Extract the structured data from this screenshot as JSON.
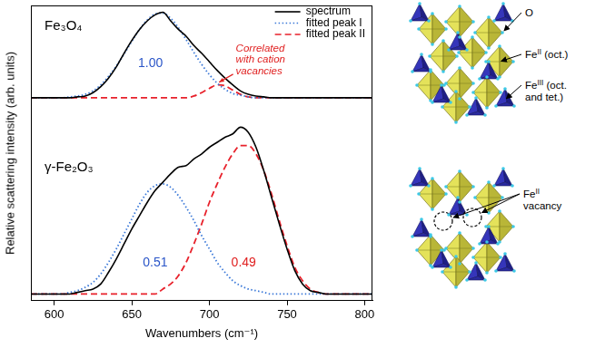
{
  "chart_data": [
    {
      "type": "line",
      "annotations": [
        {
          "text": "Fe₃O₄",
          "color": "#000000"
        },
        {
          "text": "1.00",
          "color": "#2a55c8"
        },
        {
          "text": "Correlated with cation vacancies",
          "color": "#e02020"
        }
      ],
      "x": [
        585,
        590,
        595,
        600,
        605,
        610,
        615,
        620,
        625,
        630,
        635,
        640,
        645,
        650,
        655,
        660,
        665,
        670,
        675,
        680,
        685,
        690,
        695,
        700,
        705,
        710,
        715,
        720,
        725,
        730,
        735,
        740,
        745,
        750,
        755,
        760,
        765,
        770,
        775,
        780,
        785,
        790,
        795,
        800,
        805
      ],
      "xlim": [
        585,
        805
      ],
      "ylim": [
        -0.15,
        1.08
      ],
      "series": [
        {
          "name": "spectrum",
          "color": "#000000",
          "line_style": "solid",
          "values": [
            0,
            0,
            0,
            0,
            0,
            0,
            0.01,
            0.02,
            0.06,
            0.13,
            0.23,
            0.36,
            0.52,
            0.67,
            0.8,
            0.9,
            0.97,
            1.0,
            0.9,
            0.8,
            0.72,
            0.61,
            0.52,
            0.42,
            0.32,
            0.23,
            0.15,
            0.08,
            0.04,
            0.02,
            0.01,
            0,
            0,
            0,
            0,
            0,
            0,
            0,
            0,
            0,
            0,
            0,
            0,
            0,
            0
          ]
        },
        {
          "name": "fitted peak I",
          "color": "#3a78d8",
          "line_style": "dotted",
          "values": [
            0,
            0,
            0,
            0,
            0,
            0.01,
            0.02,
            0.04,
            0.08,
            0.15,
            0.25,
            0.37,
            0.51,
            0.66,
            0.8,
            0.91,
            0.98,
            0.99,
            0.93,
            0.82,
            0.68,
            0.53,
            0.39,
            0.27,
            0.17,
            0.1,
            0.05,
            0.03,
            0.01,
            0,
            0,
            0,
            0,
            0,
            0,
            0,
            0,
            0,
            0,
            0,
            0,
            0,
            0,
            0,
            0
          ]
        },
        {
          "name": "fitted peak II",
          "color": "#e8212b",
          "line_style": "dashed",
          "values": [
            0,
            0,
            0,
            0,
            0,
            0,
            0,
            0,
            0,
            0,
            0,
            0,
            0,
            0,
            0,
            0,
            0,
            0,
            0,
            0,
            0,
            0.02,
            0.06,
            0.11,
            0.15,
            0.14,
            0.09,
            0.04,
            0.01,
            0,
            0,
            0,
            0,
            0,
            0,
            0,
            0,
            0,
            0,
            0,
            0,
            0,
            0,
            0,
            0
          ]
        }
      ],
      "grid": false,
      "legend": "upper right",
      "tick_labels": false
    },
    {
      "type": "line",
      "annotations": [
        {
          "text": "γ-Fe₂O₃",
          "color": "#000000"
        },
        {
          "text": "0.51",
          "color": "#2a55c8"
        },
        {
          "text": "0.49",
          "color": "#e02020"
        }
      ],
      "xlabel": "Wavenumbers (cm⁻¹)",
      "ylabel": "Relative scattering intensity (arb. units)",
      "x": [
        585,
        590,
        595,
        600,
        605,
        610,
        615,
        620,
        625,
        630,
        635,
        640,
        645,
        650,
        655,
        660,
        665,
        670,
        675,
        680,
        685,
        690,
        695,
        700,
        705,
        710,
        715,
        720,
        725,
        730,
        735,
        740,
        745,
        750,
        755,
        760,
        765,
        770,
        775,
        780,
        785,
        790,
        795,
        800,
        805
      ],
      "xlim": [
        585,
        805
      ],
      "xticks": [
        600,
        650,
        700,
        750,
        800
      ],
      "ylim": [
        -0.04,
        1.1
      ],
      "series": [
        {
          "name": "spectrum",
          "color": "#000000",
          "line_style": "solid",
          "values": [
            0,
            0,
            0,
            0,
            0,
            0,
            0.01,
            0.02,
            0.03,
            0.06,
            0.13,
            0.21,
            0.3,
            0.39,
            0.47,
            0.55,
            0.62,
            0.67,
            0.72,
            0.76,
            0.77,
            0.81,
            0.84,
            0.88,
            0.91,
            0.94,
            0.96,
            1.0,
            0.97,
            0.88,
            0.74,
            0.58,
            0.42,
            0.27,
            0.14,
            0.06,
            0.02,
            0.01,
            0,
            0,
            0,
            0,
            0,
            0,
            0
          ]
        },
        {
          "name": "fitted peak I",
          "color": "#3a78d8",
          "line_style": "dotted",
          "values": [
            0,
            0,
            0,
            0,
            0,
            0.01,
            0.02,
            0.04,
            0.07,
            0.12,
            0.19,
            0.27,
            0.36,
            0.45,
            0.54,
            0.61,
            0.65,
            0.66,
            0.64,
            0.59,
            0.52,
            0.44,
            0.35,
            0.27,
            0.19,
            0.13,
            0.08,
            0.05,
            0.03,
            0.02,
            0.01,
            0,
            0,
            0,
            0,
            0,
            0,
            0,
            0,
            0,
            0,
            0,
            0,
            0,
            0
          ]
        },
        {
          "name": "fitted peak II",
          "color": "#e8212b",
          "line_style": "dashed",
          "values": [
            0,
            0,
            0,
            0,
            0,
            0,
            0,
            0,
            0,
            0,
            0,
            0,
            0,
            0,
            0,
            0,
            0,
            0.03,
            0.06,
            0.11,
            0.19,
            0.3,
            0.42,
            0.55,
            0.66,
            0.76,
            0.84,
            0.89,
            0.89,
            0.84,
            0.74,
            0.6,
            0.44,
            0.29,
            0.16,
            0.08,
            0.03,
            0.01,
            0,
            0,
            0,
            0,
            0,
            0,
            0
          ]
        }
      ],
      "grid": false,
      "tick_labels": "x"
    }
  ],
  "structures": [
    {
      "labels": [
        {
          "parts": [
            "O"
          ]
        },
        {
          "parts": [
            "Fe",
            "II",
            " (oct.)"
          ]
        },
        {
          "parts": [
            "Fe",
            "III",
            " (oct. and tet.)"
          ]
        }
      ]
    },
    {
      "labels": [
        {
          "parts": [
            "Fe",
            "II",
            " vacancy"
          ]
        }
      ]
    }
  ]
}
